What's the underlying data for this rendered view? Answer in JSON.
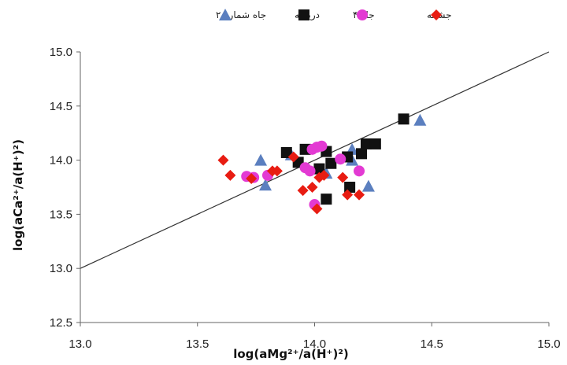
{
  "chart_data": {
    "type": "scatter",
    "xlabel": "log(aMg²⁺/a(H⁺)²)",
    "ylabel": "log(aCa²⁺/a(H⁺)²)",
    "xlim": [
      13.0,
      15.0
    ],
    "ylim": [
      12.5,
      15.0
    ],
    "x_ticks": [
      "13.0",
      "13.5",
      "14.0",
      "14.5",
      "15.0"
    ],
    "y_ticks": [
      "12.5",
      "13.0",
      "13.5",
      "14.0",
      "14.5",
      "15.0"
    ],
    "grid": false,
    "legend_position": "top",
    "reference_line": {
      "x": [
        13.0,
        15.0
      ],
      "y": [
        13.0,
        15.0
      ],
      "color": "#333333"
    },
    "series": [
      {
        "name": "جاه شماره ۲",
        "marker": "triangle",
        "color": "#5b7fbf",
        "points": [
          [
            13.77,
            14.0
          ],
          [
            13.79,
            13.77
          ],
          [
            13.9,
            14.05
          ],
          [
            14.05,
            13.88
          ],
          [
            14.16,
            14.1
          ],
          [
            14.16,
            14.0
          ],
          [
            14.23,
            13.76
          ],
          [
            14.45,
            14.37
          ]
        ]
      },
      {
        "name": "دریاچه",
        "marker": "square",
        "color": "#111111",
        "points": [
          [
            13.88,
            14.07
          ],
          [
            13.93,
            13.98
          ],
          [
            13.96,
            14.1
          ],
          [
            14.02,
            13.92
          ],
          [
            14.05,
            14.08
          ],
          [
            14.05,
            13.64
          ],
          [
            14.07,
            13.97
          ],
          [
            14.14,
            14.03
          ],
          [
            14.15,
            13.75
          ],
          [
            14.2,
            14.06
          ],
          [
            14.22,
            14.15
          ],
          [
            14.26,
            14.15
          ],
          [
            14.38,
            14.38
          ]
        ]
      },
      {
        "name": "جاه ۴",
        "marker": "circle",
        "color": "#e33ad3",
        "points": [
          [
            13.71,
            13.85
          ],
          [
            13.74,
            13.84
          ],
          [
            13.8,
            13.86
          ],
          [
            13.96,
            13.93
          ],
          [
            13.98,
            13.9
          ],
          [
            13.99,
            14.1
          ],
          [
            14.0,
            13.59
          ],
          [
            14.01,
            14.12
          ],
          [
            14.03,
            14.13
          ],
          [
            14.11,
            14.01
          ],
          [
            14.19,
            13.9
          ]
        ]
      },
      {
        "name": "جشمه",
        "marker": "diamond",
        "color": "#e81c12",
        "points": [
          [
            13.61,
            14.0
          ],
          [
            13.64,
            13.86
          ],
          [
            13.73,
            13.83
          ],
          [
            13.82,
            13.9
          ],
          [
            13.84,
            13.9
          ],
          [
            13.91,
            14.03
          ],
          [
            13.95,
            13.72
          ],
          [
            13.99,
            13.75
          ],
          [
            14.01,
            13.55
          ],
          [
            14.02,
            13.84
          ],
          [
            14.04,
            13.86
          ],
          [
            14.12,
            13.84
          ],
          [
            14.14,
            13.68
          ],
          [
            14.19,
            13.68
          ]
        ]
      }
    ]
  }
}
